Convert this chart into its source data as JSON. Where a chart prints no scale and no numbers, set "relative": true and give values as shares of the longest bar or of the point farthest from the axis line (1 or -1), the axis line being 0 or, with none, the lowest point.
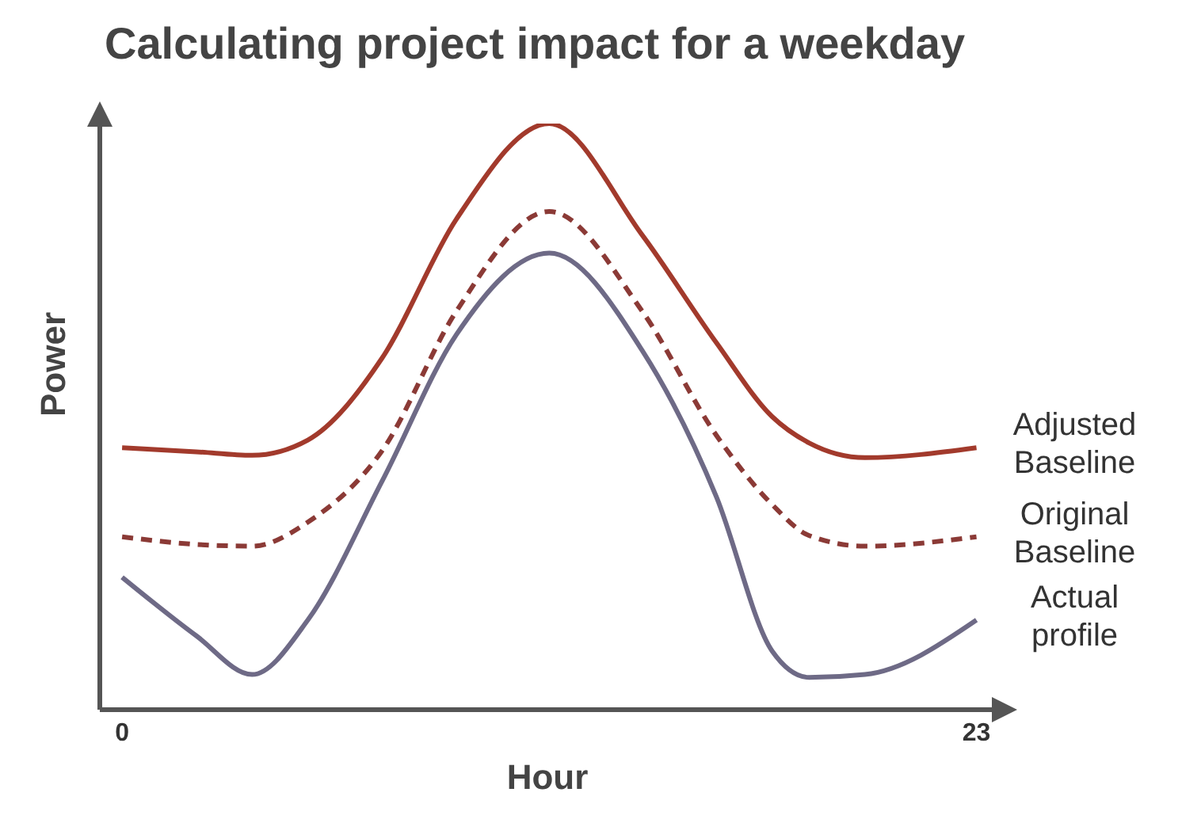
{
  "chart_data": {
    "type": "line",
    "title": "Calculating project impact for a weekday",
    "xlabel": "Hour",
    "ylabel": "Power",
    "relative": true,
    "x": [
      0,
      2,
      3.5,
      5,
      7,
      9,
      11.5,
      14,
      16,
      17.5,
      18.5,
      20,
      23
    ],
    "xlim": [
      -0.6,
      23.5
    ],
    "xticks": [
      0,
      23
    ],
    "grid": false,
    "legend": false,
    "marker": "none",
    "series": [
      {
        "name": "Adjusted Baseline",
        "color": "#a23a2c",
        "line_style": "solid",
        "values": [
          0.447,
          0.44,
          0.434,
          0.46,
          0.6,
          0.837,
          1,
          0.81,
          0.626,
          0.5,
          0.455,
          0.43,
          0.447
        ]
      },
      {
        "name": "Original Baseline",
        "color": "#8b3a36",
        "line_style": "dashed",
        "values": [
          0.295,
          0.282,
          0.279,
          0.32,
          0.442,
          0.68,
          0.85,
          0.68,
          0.468,
          0.35,
          0.297,
          0.279,
          0.295
        ]
      },
      {
        "name": "Actual profile",
        "color": "#6e6a86",
        "line_style": "solid",
        "values": [
          0.226,
          0.126,
          0.06,
          0.153,
          0.39,
          0.64,
          0.779,
          0.613,
          0.363,
          0.1,
          0.055,
          0.06,
          0.153
        ]
      }
    ]
  }
}
